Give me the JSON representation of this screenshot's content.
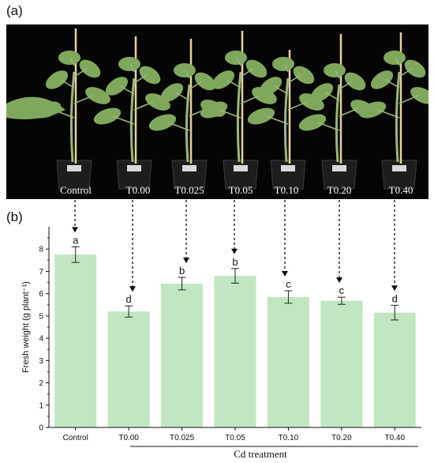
{
  "panel_a": {
    "label": "(a)",
    "captions": [
      "Control",
      "T0.00",
      "T0.025",
      "T0.05",
      "T0.10",
      "T0.20",
      "T0.40"
    ],
    "background": "#050505",
    "leaf_color": "#7fa85c",
    "stem_color": "#9db77a",
    "stake_color": "#e6d29a"
  },
  "panel_b": {
    "label": "(b)"
  },
  "chart_data": {
    "type": "bar",
    "categories": [
      "Control",
      "T0.00",
      "T0.025",
      "T0.05",
      "T0.10",
      "T0.20",
      "T0.40"
    ],
    "values": [
      7.75,
      5.2,
      6.45,
      6.8,
      5.85,
      5.68,
      5.15
    ],
    "errors": [
      0.35,
      0.25,
      0.28,
      0.33,
      0.28,
      0.16,
      0.33
    ],
    "significance": [
      "a",
      "d",
      "b",
      "b",
      "c",
      "c",
      "d"
    ],
    "ylabel": "Fresh weight (g plant⁻¹)",
    "xlabel": "Cd treatment",
    "ylim": [
      0,
      9
    ],
    "yticks": [
      "0",
      "1",
      "2",
      "3",
      "4",
      "5",
      "6",
      "7",
      "8"
    ],
    "bar_color": "#c2e6c2",
    "grid": false,
    "legend": "none"
  }
}
